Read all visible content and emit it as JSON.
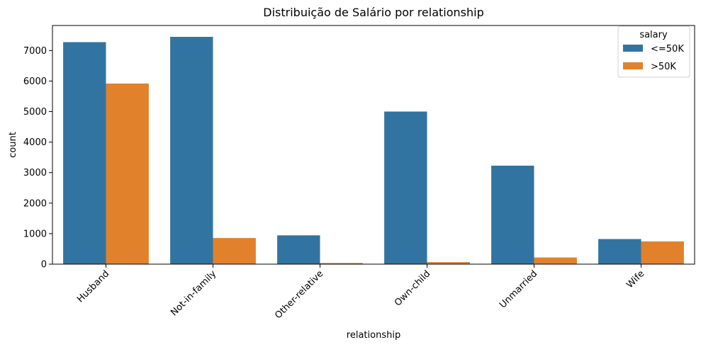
{
  "chart_data": {
    "type": "bar",
    "title": "Distribuição de Salário por relationship",
    "xlabel": "relationship",
    "ylabel": "count",
    "categories": [
      "Husband",
      "Not-in-family",
      "Other-relative",
      "Own-child",
      "Unmarried",
      "Wife"
    ],
    "series": [
      {
        "name": "<=50K",
        "color": "#3274a1",
        "values": [
          7275,
          7449,
          944,
          5001,
          3228,
          823
        ]
      },
      {
        "name": ">50K",
        "color": "#e1812c",
        "values": [
          5918,
          856,
          37,
          67,
          218,
          745
        ]
      }
    ],
    "ylim": [
      0,
      7821
    ],
    "yticks": [
      0,
      1000,
      2000,
      3000,
      4000,
      5000,
      6000,
      7000
    ],
    "legend": {
      "title": "salary",
      "position": "top-right"
    },
    "grid": false
  }
}
